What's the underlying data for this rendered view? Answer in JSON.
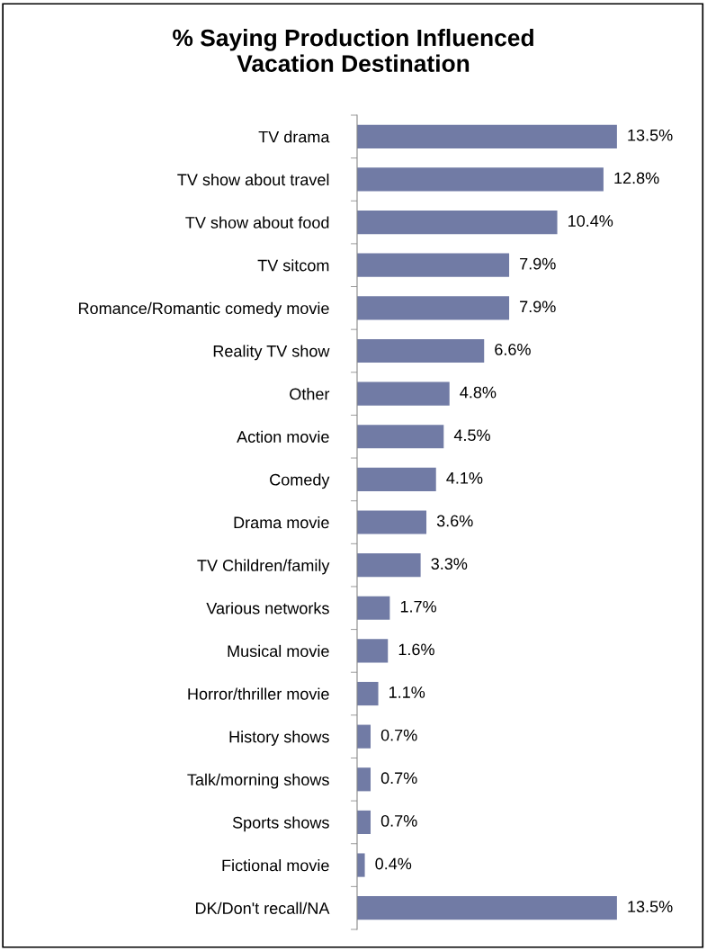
{
  "chart_data": {
    "type": "bar",
    "orientation": "horizontal",
    "title": "% Saying Production Influenced\nVacation Destination",
    "categories": [
      "TV drama",
      "TV show about travel",
      "TV show about food",
      "TV sitcom",
      "Romance/Romantic comedy movie",
      "Reality TV show",
      "Other",
      "Action movie",
      "Comedy",
      "Drama movie",
      "TV Children/family",
      "Various networks",
      "Musical movie",
      "Horror/thriller movie",
      "History shows",
      "Talk/morning shows",
      "Sports shows",
      "Fictional movie",
      "DK/Don't recall/NA"
    ],
    "values": [
      13.5,
      12.8,
      10.4,
      7.9,
      7.9,
      6.6,
      4.8,
      4.5,
      4.1,
      3.6,
      3.3,
      1.7,
      1.6,
      1.1,
      0.7,
      0.7,
      0.7,
      0.4,
      13.5
    ],
    "value_labels": [
      "13.5%",
      "12.8%",
      "10.4%",
      "7.9%",
      "7.9%",
      "6.6%",
      "4.8%",
      "4.5%",
      "4.1%",
      "3.6%",
      "3.3%",
      "1.7%",
      "1.6%",
      "1.1%",
      "0.7%",
      "0.7%",
      "0.7%",
      "0.4%",
      "13.5%"
    ],
    "color": "#717ba5",
    "grid": false,
    "legend": false
  }
}
